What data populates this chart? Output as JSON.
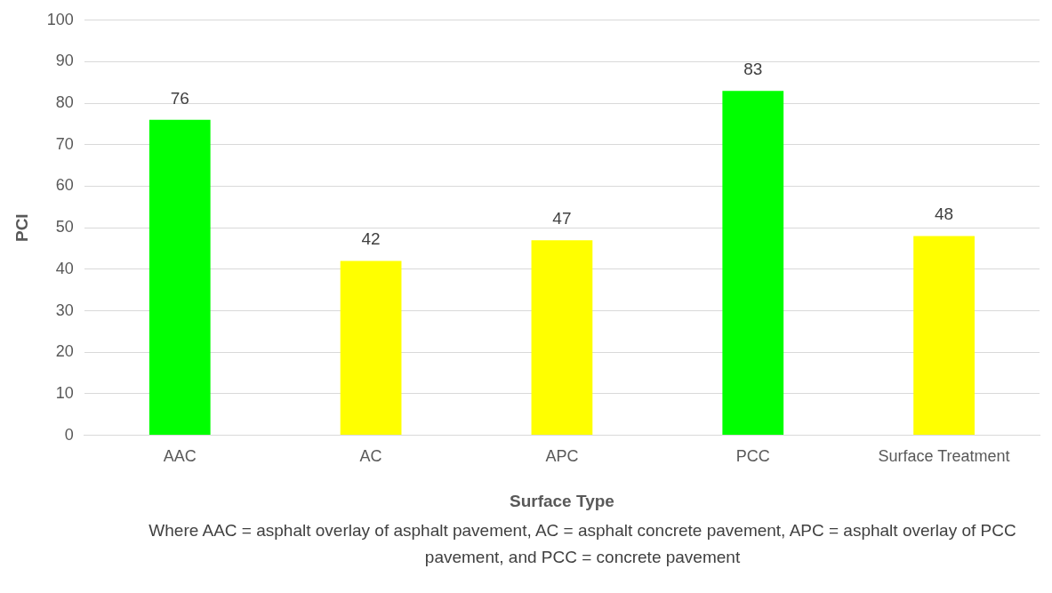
{
  "chart_data": {
    "type": "bar",
    "xlabel": "Surface Type",
    "ylabel": "PCI",
    "categories": [
      "AAC",
      "AC",
      "APC",
      "PCC",
      "Surface Treatment"
    ],
    "values": [
      76,
      42,
      47,
      83,
      48
    ],
    "colors": [
      "#00ff00",
      "#ffff00",
      "#ffff00",
      "#00ff00",
      "#ffff00"
    ],
    "ylim": [
      0,
      100
    ],
    "yticks": [
      0,
      10,
      20,
      30,
      40,
      50,
      60,
      70,
      80,
      90,
      100
    ],
    "grid": "y",
    "legend": false,
    "data_labels": true,
    "annotations": [
      "Where AAC = asphalt overlay of asphalt pavement, AC = asphalt concrete pavement, APC = asphalt overlay of PCC pavement, and PCC = concrete pavement"
    ]
  }
}
